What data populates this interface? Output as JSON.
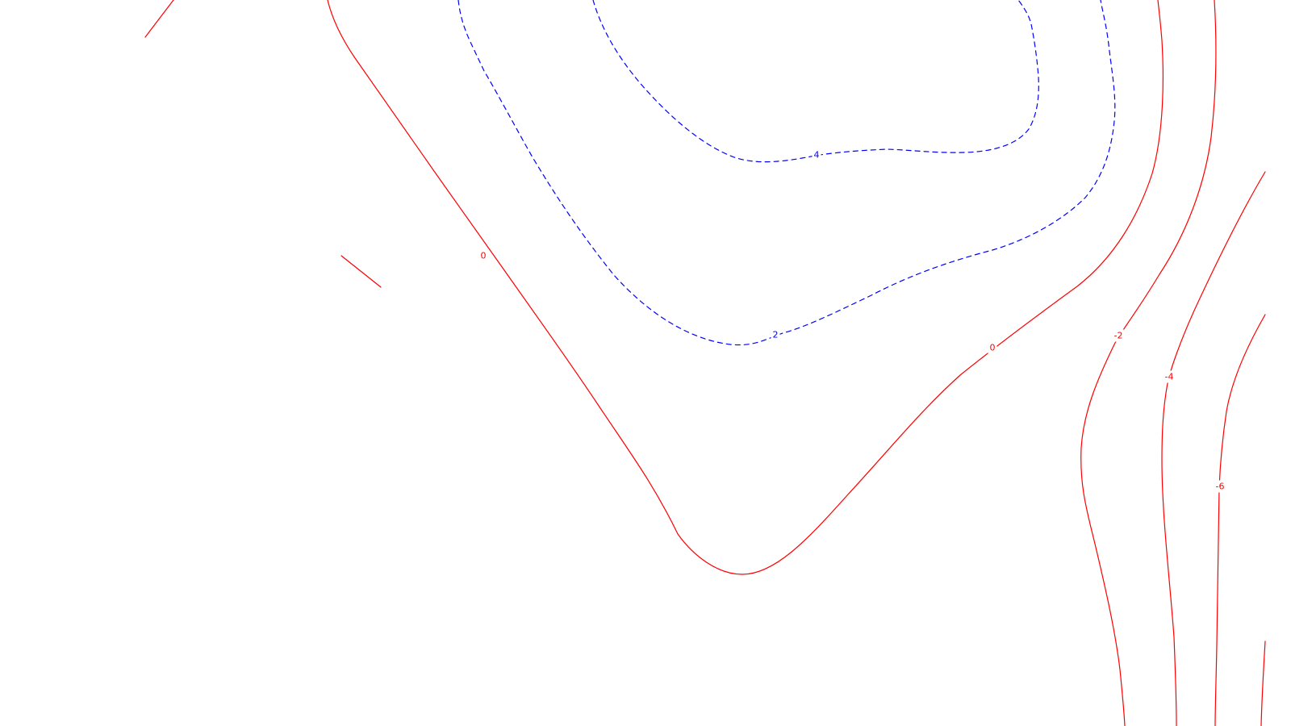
{
  "style": {
    "background": "#ffffff",
    "positive_color": "#0000ff",
    "zero_color": "#ff0000",
    "negative_color": "#ff0000",
    "positive_dash": "dashed",
    "negative_dash": "solid"
  },
  "contour_labels": {
    "level_4": "4",
    "level_2": "2",
    "level_0_left": "0",
    "level_0_right": "0",
    "level_neg2": "-2",
    "level_neg4": "-4",
    "level_neg6": "-6"
  }
}
